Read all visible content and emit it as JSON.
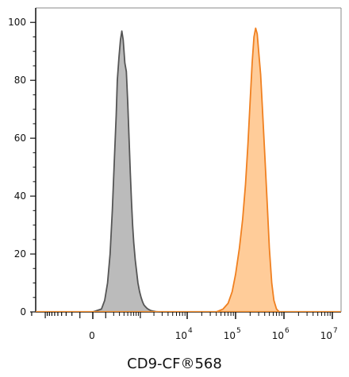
{
  "chart_data": {
    "type": "area",
    "title": "",
    "xlabel": "CD9-CF®568",
    "ylabel": "",
    "ylim": [
      0,
      105
    ],
    "xscale": "biexponential",
    "xlim": [
      -2000,
      10000000
    ],
    "grid": false,
    "legend": "none",
    "y_ticks": [
      {
        "value": 0,
        "label": "0"
      },
      {
        "value": 20,
        "label": "20"
      },
      {
        "value": 40,
        "label": "40"
      },
      {
        "value": 60,
        "label": "60"
      },
      {
        "value": 80,
        "label": "80"
      },
      {
        "value": 100,
        "label": "100"
      }
    ],
    "x_ticks": [
      {
        "value": 0,
        "base": "0",
        "exp": ""
      },
      {
        "value": 10000,
        "base": "10",
        "exp": "4"
      },
      {
        "value": 100000,
        "base": "10",
        "exp": "5"
      },
      {
        "value": 1000000,
        "base": "10",
        "exp": "6"
      },
      {
        "value": 10000000,
        "base": "10",
        "exp": "7"
      }
    ],
    "series": [
      {
        "fill": "#bbbbbb",
        "stroke": "#555555",
        "x": [
          0,
          60,
          90,
          120,
          150,
          180,
          210,
          240,
          260,
          290,
          320,
          350,
          380,
          420,
          460,
          500,
          540,
          580,
          620,
          660,
          700,
          760,
          820,
          880,
          960,
          1040,
          1120,
          1200,
          1300,
          1420,
          1560,
          1700,
          1900,
          2200,
          2600
        ],
        "y": [
          0,
          1,
          4,
          10,
          20,
          35,
          52,
          68,
          80,
          88,
          94,
          97,
          94,
          86,
          83,
          72,
          60,
          48,
          38,
          30,
          24,
          18,
          14,
          10,
          7,
          5,
          3.5,
          2.5,
          1.8,
          1.2,
          0.8,
          0.5,
          0.3,
          0.1,
          0
        ]
      },
      {
        "fill": "#ffcc99",
        "stroke": "#f08020",
        "x": [
          40000,
          55000,
          70000,
          85000,
          100000,
          120000,
          140000,
          160000,
          180000,
          200000,
          220000,
          240000,
          260000,
          280000,
          300000,
          330000,
          360000,
          400000,
          450000,
          500000,
          560000,
          620000,
          700000,
          800000
        ],
        "y": [
          0,
          1,
          3,
          7,
          13,
          22,
          32,
          44,
          58,
          73,
          86,
          95,
          98,
          96,
          90,
          82,
          70,
          55,
          38,
          22,
          10,
          4,
          1,
          0
        ]
      }
    ]
  }
}
